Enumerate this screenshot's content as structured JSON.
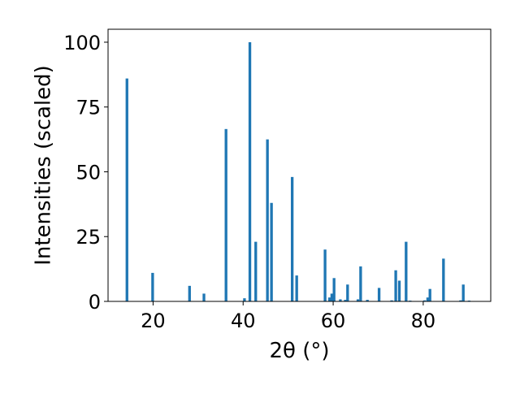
{
  "chart_data": {
    "type": "bar",
    "title": "",
    "xlabel": "2θ (°)",
    "ylabel": "Intensities (scaled)",
    "xlim": [
      10,
      95
    ],
    "ylim": [
      0,
      105
    ],
    "xticks": [
      20,
      40,
      60,
      80
    ],
    "yticks": [
      0,
      25,
      50,
      75,
      100
    ],
    "grid": false,
    "legend": "none",
    "bar_width": 0.6,
    "color": "#1f77b4",
    "series": [
      {
        "x": [
          14.2,
          19.9,
          28.1,
          31.3,
          36.2,
          40.3,
          41.5,
          42.8,
          45.4,
          46.3,
          50.9,
          51.9,
          58.2,
          59.2,
          59.7,
          60.2,
          61.6,
          62.7,
          63.2,
          65.5,
          66.1,
          67.6,
          70.2,
          73.0,
          73.9,
          74.7,
          76.2,
          77.1,
          80.3,
          81.0,
          81.5,
          84.5,
          88.3,
          88.9,
          90.2
        ],
        "values": [
          86,
          11,
          6,
          3,
          66.5,
          1.2,
          100,
          23,
          62.5,
          38,
          48,
          10,
          20,
          1.5,
          3,
          9,
          0.8,
          0.6,
          6.5,
          0.8,
          13.5,
          0.6,
          5.2,
          0.4,
          12,
          8,
          23,
          0.3,
          0.4,
          1.5,
          4.8,
          16.5,
          0.4,
          6.5,
          0.3
        ]
      }
    ]
  }
}
